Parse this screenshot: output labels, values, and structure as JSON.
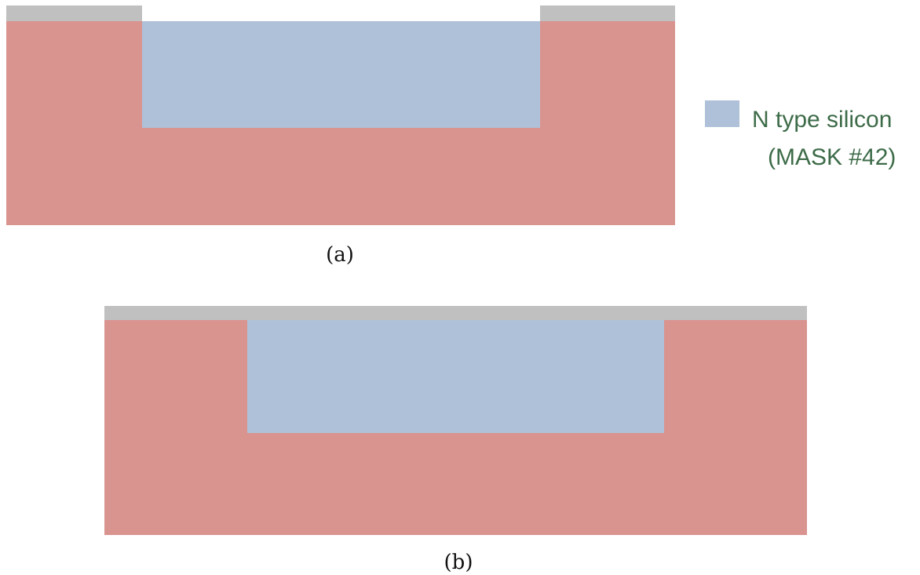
{
  "colors": {
    "substrate": "#d9948f",
    "n_silicon": "#afc1d9",
    "oxide": "#c0c0c0",
    "legend_text": "#3d6b48",
    "caption_text": "#111111"
  },
  "legend": {
    "swatch_icon": "n-type-silicon-swatch",
    "line1": "N type silicon",
    "line2": "(MASK #42)"
  },
  "figures": [
    {
      "caption": "(a)"
    },
    {
      "caption": "(b)"
    }
  ]
}
